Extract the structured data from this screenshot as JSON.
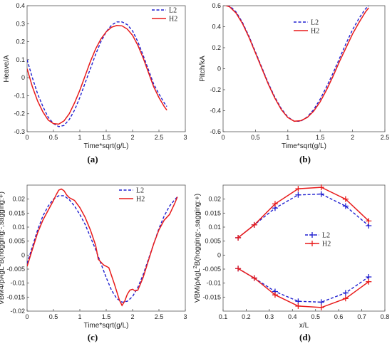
{
  "colors": {
    "L2": "#1f1fd0",
    "H2": "#e81a1a"
  },
  "chart_data": [
    {
      "id": "a",
      "type": "line",
      "panel_label": "(a)",
      "xlabel": "Time*sqrt(g/L)",
      "ylabel": "Heave/A",
      "xlim": [
        0,
        3
      ],
      "ylim": [
        -0.3,
        0.4
      ],
      "xticks": [
        0,
        0.5,
        1,
        1.5,
        2,
        2.5,
        3
      ],
      "xticklabels": [
        "0",
        "0.5",
        "1",
        "1.5",
        "2",
        "2.5",
        "3"
      ],
      "yticks": [
        -0.3,
        -0.2,
        -0.1,
        0,
        0.1,
        0.2,
        0.3,
        0.4
      ],
      "yticklabels": [
        "-0.3",
        "-0.2",
        "-0.1",
        "0",
        "0.1",
        "0.2",
        "0.3",
        "0.4"
      ],
      "legend": "top-right",
      "series": [
        {
          "name": "L2",
          "style": "dashed",
          "x": [
            0,
            0.1,
            0.2,
            0.3,
            0.4,
            0.5,
            0.6,
            0.7,
            0.8,
            0.9,
            1.0,
            1.1,
            1.2,
            1.3,
            1.4,
            1.5,
            1.6,
            1.7,
            1.8,
            1.9,
            2.0,
            2.1,
            2.2,
            2.3,
            2.4,
            2.5,
            2.6,
            2.65
          ],
          "y": [
            0.1,
            0.0,
            -0.09,
            -0.16,
            -0.22,
            -0.255,
            -0.272,
            -0.265,
            -0.232,
            -0.18,
            -0.11,
            -0.03,
            0.05,
            0.13,
            0.2,
            0.255,
            0.292,
            0.31,
            0.31,
            0.295,
            0.26,
            0.2,
            0.125,
            0.045,
            -0.035,
            -0.09,
            -0.14,
            -0.16
          ]
        },
        {
          "name": "H2",
          "style": "solid",
          "x": [
            0,
            0.1,
            0.2,
            0.3,
            0.4,
            0.5,
            0.6,
            0.7,
            0.8,
            0.9,
            1.0,
            1.1,
            1.2,
            1.3,
            1.4,
            1.5,
            1.6,
            1.7,
            1.8,
            1.9,
            2.0,
            2.1,
            2.2,
            2.3,
            2.4,
            2.5,
            2.6,
            2.65
          ],
          "y": [
            0.05,
            -0.05,
            -0.13,
            -0.19,
            -0.235,
            -0.255,
            -0.258,
            -0.24,
            -0.2,
            -0.14,
            -0.07,
            0.01,
            0.09,
            0.16,
            0.215,
            0.255,
            0.28,
            0.29,
            0.288,
            0.27,
            0.235,
            0.18,
            0.11,
            0.03,
            -0.05,
            -0.11,
            -0.16,
            -0.18
          ]
        }
      ]
    },
    {
      "id": "b",
      "type": "line",
      "panel_label": "(b)",
      "xlabel": "Time*sqrt(g/L)",
      "ylabel": "Pitch/kA",
      "xlim": [
        0,
        2.5
      ],
      "ylim": [
        -0.6,
        0.6
      ],
      "xticks": [
        0,
        0.5,
        1,
        1.5,
        2,
        2.5
      ],
      "xticklabels": [
        "0",
        "0.5",
        "1",
        "1.5",
        "2",
        "2.5"
      ],
      "yticks": [
        -0.6,
        -0.4,
        -0.2,
        0,
        0.2,
        0.4,
        0.6
      ],
      "yticklabels": [
        "-0.6",
        "-0.4",
        "-0.2",
        "0",
        "0.2",
        "0.4",
        "0.6"
      ],
      "legend": "top-right",
      "series": [
        {
          "name": "L2",
          "style": "dashed",
          "x": [
            0,
            0.1,
            0.2,
            0.3,
            0.4,
            0.5,
            0.6,
            0.7,
            0.8,
            0.9,
            1.0,
            1.1,
            1.2,
            1.3,
            1.4,
            1.5,
            1.6,
            1.7,
            1.8,
            1.9,
            2.0,
            2.1,
            2.2,
            2.25
          ],
          "y": [
            0.62,
            0.6,
            0.54,
            0.44,
            0.31,
            0.16,
            0.01,
            -0.14,
            -0.27,
            -0.38,
            -0.46,
            -0.5,
            -0.5,
            -0.46,
            -0.39,
            -0.29,
            -0.17,
            -0.04,
            0.1,
            0.24,
            0.37,
            0.48,
            0.57,
            0.6
          ]
        },
        {
          "name": "H2",
          "style": "solid",
          "x": [
            0,
            0.1,
            0.2,
            0.3,
            0.4,
            0.5,
            0.6,
            0.7,
            0.8,
            0.9,
            1.0,
            1.1,
            1.2,
            1.3,
            1.4,
            1.5,
            1.6,
            1.7,
            1.8,
            1.9,
            2.0,
            2.1,
            2.2,
            2.25
          ],
          "y": [
            0.61,
            0.59,
            0.53,
            0.43,
            0.3,
            0.15,
            0.0,
            -0.15,
            -0.28,
            -0.39,
            -0.465,
            -0.5,
            -0.495,
            -0.465,
            -0.405,
            -0.315,
            -0.2,
            -0.07,
            0.07,
            0.2,
            0.33,
            0.44,
            0.54,
            0.58
          ]
        }
      ]
    },
    {
      "id": "c",
      "type": "line",
      "panel_label": "(c)",
      "xlabel": "Time*sqrt(g/L)",
      "ylabel_main": "VBM4/ρAgL",
      "ylabel_sup": "2",
      "ylabel_tail": "B(hogging:-,sagging:+)",
      "xlim": [
        0,
        3
      ],
      "ylim": [
        -0.02,
        0.025
      ],
      "xticks": [
        0,
        0.5,
        1,
        1.5,
        2,
        2.5,
        3
      ],
      "xticklabels": [
        "0",
        "0.5",
        "1",
        "1.5",
        "2",
        "2.5",
        "3"
      ],
      "yticks": [
        -0.02,
        -0.015,
        -0.01,
        -0.005,
        0,
        0.005,
        0.01,
        0.015,
        0.02
      ],
      "yticklabels": [
        "-0.02",
        "-0.015",
        "-0.01",
        "-0.005",
        "0",
        "0.005",
        "0.01",
        "0.015",
        "0.02"
      ],
      "legend": "top-right",
      "series": [
        {
          "name": "L2",
          "style": "dashed",
          "x": [
            0,
            0.1,
            0.2,
            0.3,
            0.4,
            0.5,
            0.6,
            0.7,
            0.8,
            0.9,
            1.0,
            1.1,
            1.2,
            1.3,
            1.4,
            1.5,
            1.6,
            1.7,
            1.8,
            1.9,
            2.0,
            2.1,
            2.2,
            2.3,
            2.4,
            2.5,
            2.6,
            2.7,
            2.8,
            2.85
          ],
          "y": [
            -0.003,
            0.003,
            0.009,
            0.014,
            0.0175,
            0.02,
            0.0212,
            0.0212,
            0.0198,
            0.0175,
            0.0145,
            0.011,
            0.0065,
            0.002,
            -0.003,
            -0.008,
            -0.0125,
            -0.0155,
            -0.0168,
            -0.0165,
            -0.0148,
            -0.0115,
            -0.007,
            -0.0015,
            0.004,
            0.0095,
            0.014,
            0.0175,
            0.0198,
            0.0208
          ]
        },
        {
          "name": "H2",
          "style": "solid",
          "x": [
            0,
            0.1,
            0.2,
            0.3,
            0.4,
            0.5,
            0.55,
            0.6,
            0.65,
            0.7,
            0.75,
            0.8,
            0.9,
            1.0,
            1.1,
            1.2,
            1.3,
            1.35,
            1.45,
            1.55,
            1.65,
            1.75,
            1.8,
            1.85,
            1.9,
            1.95,
            2.0,
            2.05,
            2.1,
            2.2,
            2.3,
            2.4,
            2.5,
            2.6,
            2.7,
            2.8,
            2.85
          ],
          "y": [
            -0.004,
            0.002,
            0.008,
            0.0125,
            0.016,
            0.0195,
            0.0215,
            0.0232,
            0.0236,
            0.023,
            0.0215,
            0.0205,
            0.0195,
            0.017,
            0.0135,
            0.009,
            0.0035,
            -0.0015,
            -0.0035,
            -0.0045,
            -0.01,
            -0.016,
            -0.018,
            -0.0165,
            -0.014,
            -0.0125,
            -0.0122,
            -0.0128,
            -0.0125,
            -0.008,
            -0.002,
            0.004,
            0.009,
            0.0125,
            0.0145,
            0.0185,
            0.0208
          ]
        }
      ]
    },
    {
      "id": "d",
      "type": "line",
      "panel_label": "(d)",
      "xlabel": "x/L",
      "ylabel_main": "VBM/ρAgL",
      "ylabel_sup": "2",
      "ylabel_tail": "B(hogging:-,sagging:+)",
      "xlim": [
        0.1,
        0.8
      ],
      "ylim": [
        -0.02,
        0.025
      ],
      "xticks": [
        0.1,
        0.2,
        0.3,
        0.4,
        0.5,
        0.6,
        0.7,
        0.8
      ],
      "xticklabels": [
        "0.1",
        "0.2",
        "0.3",
        "0.4",
        "0.5",
        "0.6",
        "0.7",
        "0.8"
      ],
      "yticks": [
        -0.015,
        -0.01,
        -0.005,
        0,
        0.005,
        0.01,
        0.015,
        0.02
      ],
      "yticklabels": [
        "-0.015",
        "-0.01",
        "-0.005",
        "0",
        "0.005",
        "0.01",
        "0.015",
        "0.02"
      ],
      "legend": "center-right",
      "series": [
        {
          "name": "L2",
          "style": "dashed",
          "marker": "+",
          "x": [
            0.165,
            0.235,
            0.325,
            0.425,
            0.525,
            0.63,
            0.73
          ],
          "y": [
            0.0062,
            0.0108,
            0.0168,
            0.0215,
            0.0218,
            0.0175,
            0.0105
          ]
        },
        {
          "name": "",
          "style": "dashed",
          "marker": "+",
          "color_of": "L2",
          "x": [
            0.165,
            0.235,
            0.325,
            0.425,
            0.525,
            0.63,
            0.73
          ],
          "y": [
            -0.0048,
            -0.0082,
            -0.013,
            -0.0165,
            -0.0168,
            -0.0135,
            -0.0078
          ]
        },
        {
          "name": "H2",
          "style": "solid",
          "marker": "+",
          "x": [
            0.165,
            0.235,
            0.325,
            0.425,
            0.525,
            0.63,
            0.73
          ],
          "y": [
            0.0062,
            0.0108,
            0.0183,
            0.0237,
            0.0242,
            0.02,
            0.0122
          ]
        },
        {
          "name": "",
          "style": "solid",
          "marker": "+",
          "color_of": "H2",
          "x": [
            0.165,
            0.235,
            0.325,
            0.425,
            0.525,
            0.63,
            0.73
          ],
          "y": [
            -0.0048,
            -0.0082,
            -0.0142,
            -0.0182,
            -0.0187,
            -0.0155,
            -0.0095
          ]
        }
      ]
    }
  ]
}
